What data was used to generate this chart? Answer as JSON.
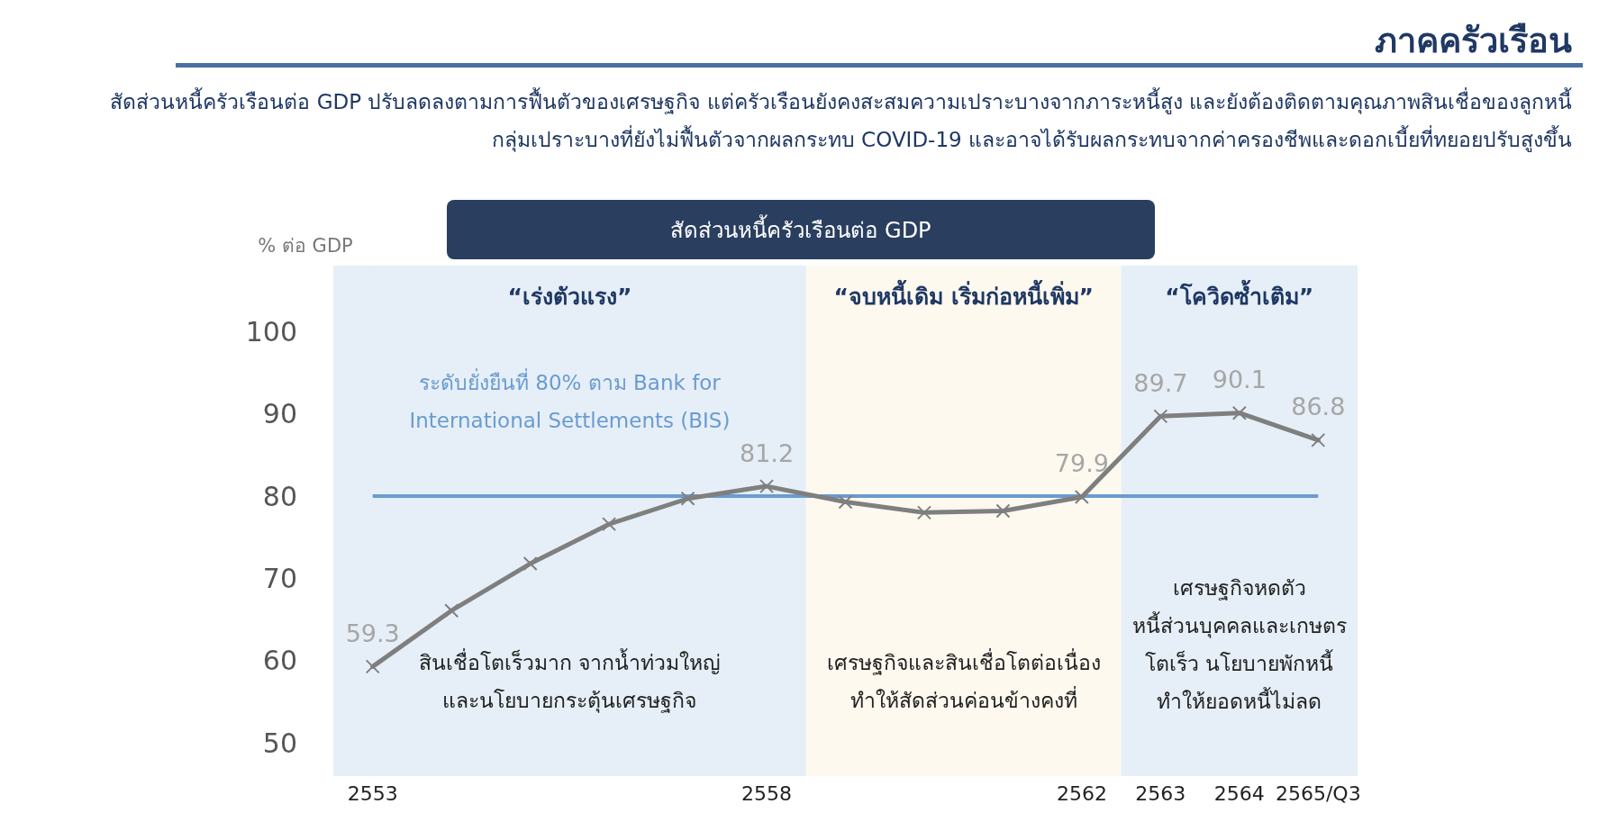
{
  "chart_data": {
    "type": "line",
    "title": "สัดส่วนหนี้ครัวเรือนต่อ GDP",
    "subtitle": "สัดส่วนหนี้ครัวเรือนต่อ GDP ปรับลดลงตามการฟื้นตัวของเศรษฐกิจ แต่ครัวเรือนยังคงสะสมความเปราะบางจากภาระหนี้สูง และยังต้องติดตามคุณภาพสินเชื่อของลูกหนี้กลุ่มเปราะบางที่ยังไม่ฟื้นตัวจากผลกระทบ COVID-19 และอาจได้รับผลกระทบจากค่าครองชีพและดอกเบี้ยที่ทยอยปรับสูงขึ้น",
    "ylabel": "% ต่อ GDP",
    "annotations": [
      "ภาคครัวเรือน",
      "สินเชื่อโตเร็วมาก จากน้ำท่วมใหญ่\nและนโยบายกระตุ้นเศรษฐกิจ",
      "เศรษฐกิจและสินเชื่อโตต่อเนื่อง\nทำให้สัดส่วนค่อนข้างคงที่",
      "เศรษฐกิจหดตัว\nหนี้ส่วนบุคคลและเกษตร\nโตเร็ว นโยบายพักหนี้\nทำให้ยอดหนี้ไม่ลด"
    ],
    "categories": [
      "2553",
      null,
      null,
      null,
      null,
      "2558",
      null,
      null,
      null,
      "2562",
      "2563",
      "2564",
      "2565/Q3"
    ],
    "series": [
      {
        "color": "#7f7f7f",
        "values": [
          59.3,
          66.1,
          71.8,
          76.6,
          79.7,
          81.2,
          79.3,
          78.0,
          78.2,
          79.9,
          89.7,
          90.1,
          86.8
        ],
        "value_labels": [
          "59.3",
          null,
          null,
          null,
          null,
          "81.2",
          null,
          null,
          null,
          "79.9",
          "89.7",
          "90.1",
          "86.8"
        ]
      }
    ],
    "ylim": [
      46,
      108
    ],
    "yticks": [
      50,
      60,
      70,
      80,
      90,
      100
    ],
    "ref_lines": [
      {
        "axis": "y",
        "value": 80,
        "label": "ระดับยั่งยืนที่ 80% ตาม Bank for\nInternational Settlements (BIS)",
        "color": "#6a9bd1"
      }
    ],
    "bands": [
      {
        "axis": "x",
        "from": "2553",
        "to": "2558",
        "label": "“เร่งตัวแรง”",
        "color": "#e6eff7"
      },
      {
        "axis": "x",
        "from": "2558",
        "to": "2562",
        "label": "“จบหนี้เดิม เริ่มก่อหนี้เพิ่ม”",
        "color": "#fdf9ef"
      },
      {
        "axis": "x",
        "from": "2562",
        "to": "2565/Q3",
        "label": "“โควิดซ้ำเติม”",
        "color": "#e6eff7"
      }
    ],
    "grid": "y",
    "marker": "cross",
    "line_style": "solid"
  }
}
